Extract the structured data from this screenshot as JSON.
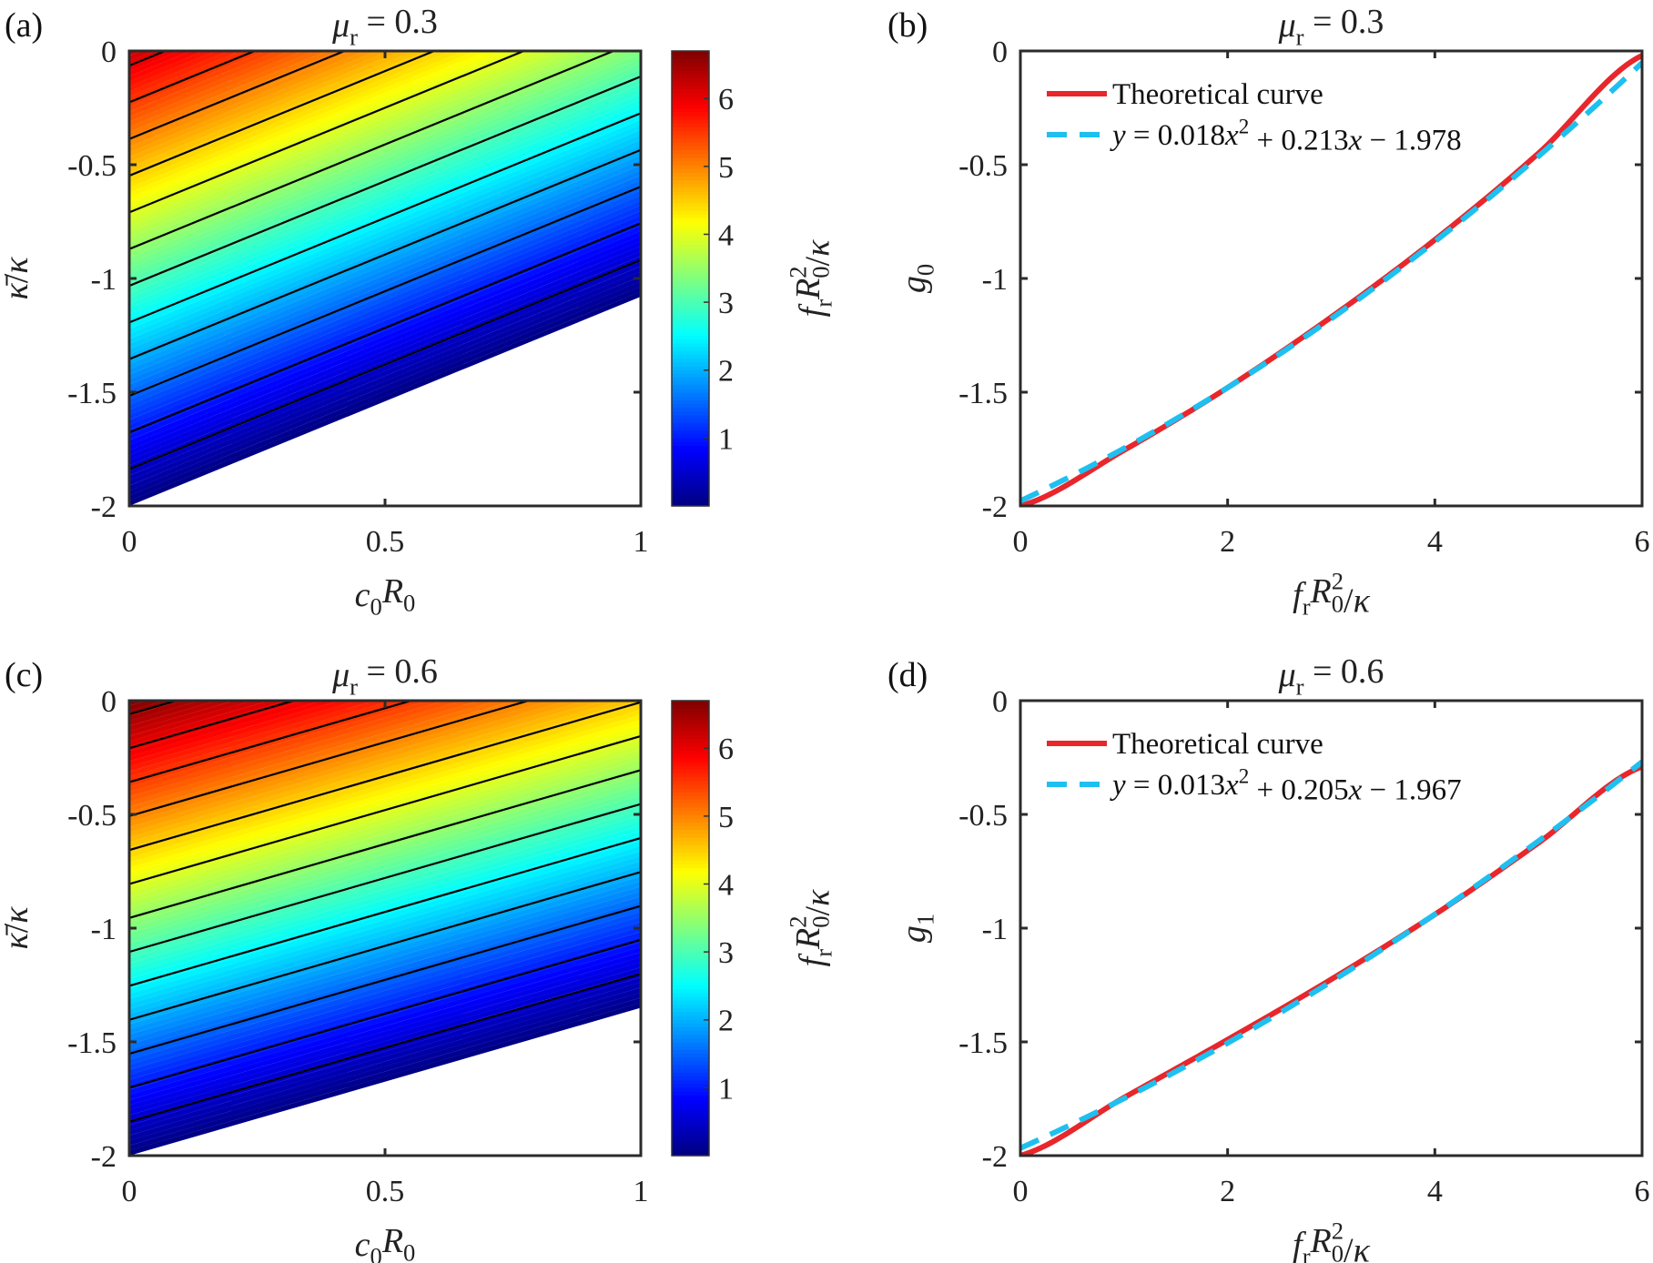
{
  "chart_data": [
    {
      "panel": "(a)",
      "type": "heatmap",
      "title": [
        {
          "t": "μ",
          "i": true
        },
        {
          "t": "r",
          "sub": true
        },
        {
          "t": " = 0.3"
        }
      ],
      "xlabel": [
        {
          "t": "c",
          "i": true
        },
        {
          "t": "0",
          "sub": true
        },
        {
          "t": "R",
          "i": true
        },
        {
          "t": "0",
          "sub": true
        }
      ],
      "ylabel": [
        {
          "t": "κ̄",
          "i": true
        },
        {
          "t": "/"
        },
        {
          "t": "κ",
          "i": true
        }
      ],
      "colorbar_label": [
        {
          "t": "f",
          "i": true
        },
        {
          "t": "r",
          "sub": true
        },
        {
          "t": "R",
          "i": true
        },
        {
          "t": "0",
          "subsup": "2"
        },
        {
          "t": "/"
        },
        {
          "t": "κ",
          "i": true
        }
      ],
      "xlim": [
        0,
        1
      ],
      "ylim": [
        -2,
        0
      ],
      "xticks": [
        "0",
        "0.5",
        "1"
      ],
      "yticks": [
        "0",
        "-0.5",
        "-1",
        "-1.5",
        "-2"
      ],
      "colorbar_range": [
        0,
        6.7
      ],
      "colorbar_ticks": [
        "1",
        "2",
        "3",
        "4",
        "5",
        "6"
      ],
      "colormap": "jet",
      "zero_boundary": [
        [
          0,
          -2
        ],
        [
          1,
          -1.08
        ]
      ],
      "corner_values": {
        "x0_y0": 6.2,
        "x1_y0": 3.35
      },
      "contour_levels": [
        0.5,
        1,
        1.5,
        2,
        2.5,
        3,
        3.5,
        4,
        4.5,
        5,
        5.5,
        6
      ],
      "contour_color": "#000000"
    },
    {
      "panel": "(b)",
      "type": "line",
      "title": [
        {
          "t": "μ",
          "i": true
        },
        {
          "t": "r",
          "sub": true
        },
        {
          "t": " = 0.3"
        }
      ],
      "xlabel": [
        {
          "t": "f",
          "i": true
        },
        {
          "t": "r",
          "sub": true
        },
        {
          "t": "R",
          "i": true
        },
        {
          "t": "0",
          "subsup": "2"
        },
        {
          "t": "/"
        },
        {
          "t": "κ",
          "i": true
        }
      ],
      "ylabel": [
        {
          "t": "g",
          "i": true
        },
        {
          "t": "0",
          "sub": true
        }
      ],
      "xlim": [
        0,
        6
      ],
      "ylim": [
        -2,
        0
      ],
      "xticks": [
        "0",
        "2",
        "4",
        "6"
      ],
      "yticks": [
        "0",
        "-0.5",
        "-1",
        "-1.5",
        "-2"
      ],
      "legend_placement": "top-left",
      "x": [
        0,
        1,
        2,
        3,
        4,
        5,
        6
      ],
      "series": [
        {
          "name": "Theoretical curve",
          "color": "#e8262b",
          "style": "solid",
          "values": [
            -2.0,
            -1.755,
            -1.48,
            -1.17,
            -0.83,
            -0.45,
            -0.02
          ]
        },
        {
          "name": [
            {
              "t": "y",
              "i": true
            },
            {
              "t": " = 0.018"
            },
            {
              "t": "x",
              "i": true
            },
            {
              "t": "2",
              "sup": true
            },
            {
              "t": " + 0.213"
            },
            {
              "t": "x",
              "i": true
            },
            {
              "t": " − 1.978"
            }
          ],
          "color": "#1ec0f0",
          "style": "dashed",
          "coefficients": [
            0.018,
            0.213,
            -1.978
          ]
        }
      ]
    },
    {
      "panel": "(c)",
      "type": "heatmap",
      "title": [
        {
          "t": "μ",
          "i": true
        },
        {
          "t": "r",
          "sub": true
        },
        {
          "t": " = 0.6"
        }
      ],
      "xlabel": [
        {
          "t": "c",
          "i": true
        },
        {
          "t": "0",
          "sub": true
        },
        {
          "t": "R",
          "i": true
        },
        {
          "t": "0",
          "sub": true
        }
      ],
      "ylabel": [
        {
          "t": "κ̄",
          "i": true
        },
        {
          "t": "/"
        },
        {
          "t": "κ",
          "i": true
        }
      ],
      "colorbar_label": [
        {
          "t": "f",
          "i": true
        },
        {
          "t": "r",
          "sub": true
        },
        {
          "t": "R",
          "i": true
        },
        {
          "t": "0",
          "subsup": "2"
        },
        {
          "t": "/"
        },
        {
          "t": "κ",
          "i": true
        }
      ],
      "xlim": [
        0,
        1
      ],
      "ylim": [
        -2,
        0
      ],
      "xticks": [
        "0",
        "0.5",
        "1"
      ],
      "yticks": [
        "0",
        "-0.5",
        "-1",
        "-1.5",
        "-2"
      ],
      "colorbar_range": [
        0,
        6.7
      ],
      "colorbar_ticks": [
        "1",
        "2",
        "3",
        "4",
        "5",
        "6"
      ],
      "colormap": "jet",
      "zero_boundary": [
        [
          0,
          -2
        ],
        [
          1,
          -1.35
        ]
      ],
      "corner_values": {
        "x0_y0": 6.7,
        "x1_y0": 4.5
      },
      "contour_levels": [
        0.5,
        1,
        1.5,
        2,
        2.5,
        3,
        3.5,
        4,
        4.5,
        5,
        5.5,
        6,
        6.5
      ],
      "contour_color": "#000000"
    },
    {
      "panel": "(d)",
      "type": "line",
      "title": [
        {
          "t": "μ",
          "i": true
        },
        {
          "t": "r",
          "sub": true
        },
        {
          "t": " = 0.6"
        }
      ],
      "xlabel": [
        {
          "t": "f",
          "i": true
        },
        {
          "t": "r",
          "sub": true
        },
        {
          "t": "R",
          "i": true
        },
        {
          "t": "0",
          "subsup": "2"
        },
        {
          "t": "/"
        },
        {
          "t": "κ",
          "i": true
        }
      ],
      "ylabel": [
        {
          "t": "g",
          "i": true
        },
        {
          "t": "1",
          "sub": true
        }
      ],
      "xlim": [
        0,
        6
      ],
      "ylim": [
        -2,
        0
      ],
      "xticks": [
        "0",
        "2",
        "4",
        "6"
      ],
      "yticks": [
        "0",
        "-0.5",
        "-1",
        "-1.5",
        "-2"
      ],
      "legend_placement": "top-left",
      "x": [
        0,
        1,
        2,
        3,
        4,
        5,
        6
      ],
      "series": [
        {
          "name": "Theoretical curve",
          "color": "#e8262b",
          "style": "solid",
          "values": [
            -2.0,
            -1.745,
            -1.49,
            -1.225,
            -0.94,
            -0.625,
            -0.29
          ]
        },
        {
          "name": [
            {
              "t": "y",
              "i": true
            },
            {
              "t": " = 0.013"
            },
            {
              "t": "x",
              "i": true
            },
            {
              "t": "2",
              "sup": true
            },
            {
              "t": " + 0.205"
            },
            {
              "t": "x",
              "i": true
            },
            {
              "t": " − 1.967"
            }
          ],
          "color": "#1ec0f0",
          "style": "dashed",
          "coefficients": [
            0.013,
            0.205,
            -1.967
          ]
        }
      ]
    }
  ]
}
